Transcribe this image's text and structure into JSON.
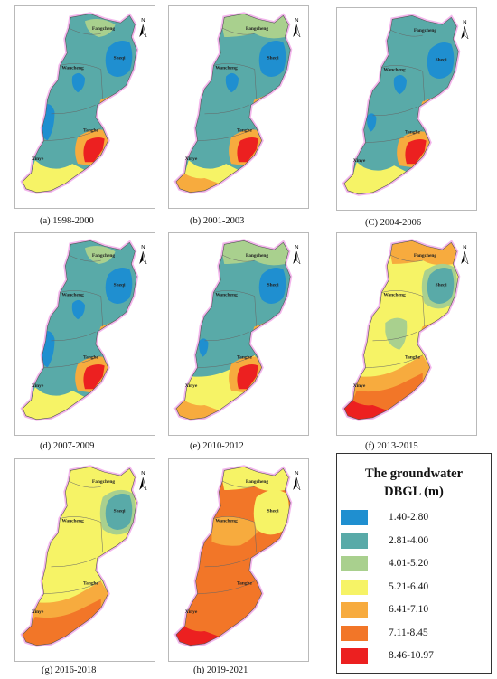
{
  "places": {
    "fangcheng": "Fangcheng",
    "wancheng": "Wancheng",
    "sheqi": "Sheqi",
    "tanghe": "Tanghe",
    "xinye": "Xinye"
  },
  "north_label": "N",
  "legend": {
    "title_line1": "The groundwater",
    "title_line2": "DBGL (m)",
    "classes": [
      {
        "range": "1.40-2.80",
        "color": "#1f8fd0"
      },
      {
        "range": "2.81-4.00",
        "color": "#59aaa8"
      },
      {
        "range": "4.01-5.20",
        "color": "#a9d08e"
      },
      {
        "range": "5.21-6.40",
        "color": "#f6f366"
      },
      {
        "range": "6.41-7.10",
        "color": "#f7ab3e"
      },
      {
        "range": "7.11-8.45",
        "color": "#f27628"
      },
      {
        "range": "8.46-10.97",
        "color": "#ec2020"
      }
    ]
  },
  "panels": [
    {
      "caption": "(a)  1998-2000",
      "base": 1,
      "zones": [
        {
          "shape": "sheqi",
          "cls": 0
        },
        {
          "shape": "wanc",
          "cls": 0
        },
        {
          "shape": "west",
          "cls": 0
        },
        {
          "shape": "southtip",
          "cls": 3
        },
        {
          "shape": "tanghe",
          "cls": 4
        },
        {
          "shape": "tanghe2",
          "cls": 6
        },
        {
          "shape": "midhook",
          "cls": 4
        },
        {
          "shape": "fangring",
          "cls": 2
        }
      ]
    },
    {
      "caption": "(b)  2001-2003",
      "base": 1,
      "zones": [
        {
          "shape": "sheqi",
          "cls": 0
        },
        {
          "shape": "wanc",
          "cls": 0
        },
        {
          "shape": "northcap",
          "cls": 2
        },
        {
          "shape": "southtip",
          "cls": 3
        },
        {
          "shape": "southtip2",
          "cls": 4
        },
        {
          "shape": "tanghe",
          "cls": 4
        },
        {
          "shape": "tanghe2",
          "cls": 6
        },
        {
          "shape": "midhook",
          "cls": 4
        }
      ]
    },
    {
      "caption": "(C)  2004-2006",
      "base": 1,
      "zones": [
        {
          "shape": "sheqi",
          "cls": 0
        },
        {
          "shape": "wanc",
          "cls": 0
        },
        {
          "shape": "westsmall",
          "cls": 0
        },
        {
          "shape": "southtip",
          "cls": 3
        },
        {
          "shape": "tanghe",
          "cls": 4
        },
        {
          "shape": "tanghe2",
          "cls": 6
        },
        {
          "shape": "midhook",
          "cls": 4
        }
      ]
    },
    {
      "caption": "(d)  2007-2009",
      "base": 1,
      "zones": [
        {
          "shape": "sheqi",
          "cls": 0
        },
        {
          "shape": "wanc",
          "cls": 0
        },
        {
          "shape": "west",
          "cls": 0
        },
        {
          "shape": "fangring",
          "cls": 2
        },
        {
          "shape": "southtip",
          "cls": 3
        },
        {
          "shape": "tanghe",
          "cls": 4
        },
        {
          "shape": "tanghe2",
          "cls": 6
        },
        {
          "shape": "midhook",
          "cls": 4
        }
      ]
    },
    {
      "caption": "(e)  2010-2012",
      "base": 1,
      "zones": [
        {
          "shape": "northcap",
          "cls": 2
        },
        {
          "shape": "sheqi",
          "cls": 0
        },
        {
          "shape": "westsmall",
          "cls": 0
        },
        {
          "shape": "southwide",
          "cls": 3
        },
        {
          "shape": "southtip2",
          "cls": 4
        },
        {
          "shape": "tanghe",
          "cls": 4
        },
        {
          "shape": "tanghe2",
          "cls": 6
        },
        {
          "shape": "midhook",
          "cls": 4
        }
      ]
    },
    {
      "caption": "(f)  2013-2015",
      "base": 3,
      "zones": [
        {
          "shape": "northcap",
          "cls": 4
        },
        {
          "shape": "sheqiring",
          "cls": 2
        },
        {
          "shape": "sheqi",
          "cls": 1
        },
        {
          "shape": "centerblob",
          "cls": 2
        },
        {
          "shape": "southwide",
          "cls": 4
        },
        {
          "shape": "southband",
          "cls": 5
        },
        {
          "shape": "southtip2",
          "cls": 6
        },
        {
          "shape": "midhook",
          "cls": 4
        }
      ]
    },
    {
      "caption": "(g)  2016-2018",
      "base": 3,
      "zones": [
        {
          "shape": "sheqiring",
          "cls": 2
        },
        {
          "shape": "sheqi",
          "cls": 1
        },
        {
          "shape": "southwide",
          "cls": 4
        },
        {
          "shape": "southband",
          "cls": 5
        }
      ]
    },
    {
      "caption": "(h)  2019-2021",
      "base": 5,
      "zones": [
        {
          "shape": "northcap",
          "cls": 3
        },
        {
          "shape": "wancband",
          "cls": 4
        },
        {
          "shape": "sheqiring",
          "cls": 3
        },
        {
          "shape": "southtip2",
          "cls": 6
        }
      ]
    }
  ]
}
